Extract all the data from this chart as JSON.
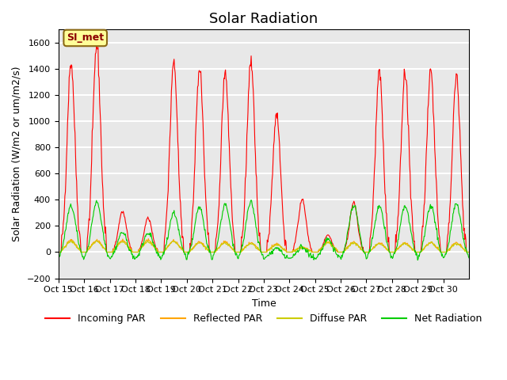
{
  "title": "Solar Radiation",
  "ylabel": "Solar Radiation (W/m2 or um/m2/s)",
  "xlabel": "Time",
  "ylim": [
    -200,
    1700
  ],
  "yticks": [
    -200,
    0,
    200,
    400,
    600,
    800,
    1000,
    1200,
    1400,
    1600
  ],
  "xtick_labels": [
    "Oct 15",
    "Oct 16",
    "Oct 17",
    "Oct 18",
    "Oct 19",
    "Oct 20",
    "Oct 21",
    "Oct 22",
    "Oct 23",
    "Oct 24",
    "Oct 25",
    "Oct 26",
    "Oct 27",
    "Oct 28",
    "Oct 29",
    "Oct 30"
  ],
  "annotation_text": "SI_met",
  "annotation_color": "#8B0000",
  "annotation_bg": "#FFFF99",
  "line_colors": {
    "incoming": "#FF0000",
    "reflected": "#FFA500",
    "diffuse": "#CCCC00",
    "net": "#00CC00"
  },
  "legend_labels": [
    "Incoming PAR",
    "Reflected PAR",
    "Diffuse PAR",
    "Net Radiation"
  ],
  "background_color": "#E8E8E8",
  "grid_color": "#FFFFFF",
  "title_fontsize": 13,
  "label_fontsize": 9,
  "tick_fontsize": 8,
  "n_days": 16,
  "n_per_day": 48,
  "day_peaks_incoming": [
    1450,
    1580,
    310,
    260,
    1450,
    1410,
    1380,
    1440,
    1060,
    400,
    130,
    380,
    1380,
    1360,
    1380,
    1340
  ],
  "day_peaks_reflected": [
    90,
    90,
    90,
    90,
    85,
    75,
    75,
    70,
    60,
    40,
    80,
    75,
    70,
    70,
    75,
    70
  ],
  "day_peaks_diffuse": [
    80,
    80,
    80,
    80,
    78,
    70,
    70,
    65,
    55,
    35,
    70,
    70,
    65,
    65,
    70,
    65
  ],
  "day_peaks_net": [
    400,
    430,
    200,
    200,
    350,
    390,
    410,
    430,
    80,
    90,
    150,
    400,
    400,
    400,
    410,
    415
  ],
  "night_baseline": -50
}
